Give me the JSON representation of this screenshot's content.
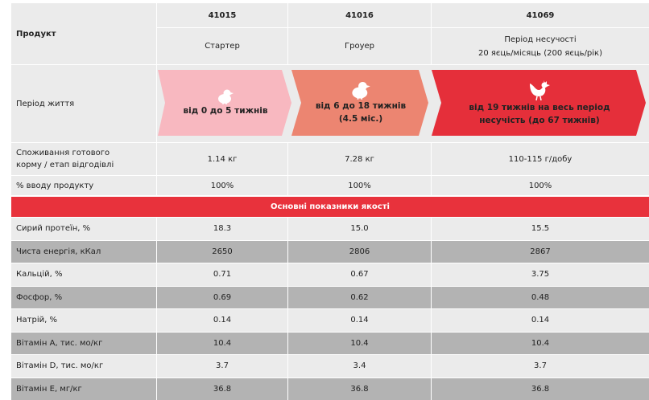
{
  "header": {
    "product_label": "Продукт",
    "codes": [
      "41015",
      "41016",
      "41069"
    ],
    "names": [
      "Стартер",
      "Гроуер",
      "Період несучості"
    ],
    "name_sub": "20 яєць/місяць (200 яєць/рік)"
  },
  "life_period": {
    "label": "Період життя",
    "stages": [
      {
        "line1": "від 0 до 5 тижнів",
        "line2": "",
        "color": "#f8b8c0",
        "icon": "chick-icon"
      },
      {
        "line1": "від 6 до 18 тижнів",
        "line2": "(4.5 міс.)",
        "color": "#ec8571",
        "icon": "chick-icon"
      },
      {
        "line1": "від 19 тижнів на весь період",
        "line2": "несучість (до 67 тижнів)",
        "color": "#e52f3a",
        "icon": "hen-icon"
      }
    ]
  },
  "consumption": {
    "label_line1": "Споживання готового",
    "label_line2": "корму / етап відгодівлі",
    "values": [
      "1.14 кг",
      "7.28 кг",
      "110-115 г/добу"
    ]
  },
  "input_pct": {
    "label": "% вводу продукту",
    "values": [
      "100%",
      "100%",
      "100%"
    ]
  },
  "quality_banner": "Основні показники якості",
  "quality_rows": [
    {
      "label": "Сирий протеїн, %",
      "values": [
        "18.3",
        "15.0",
        "15.5"
      ]
    },
    {
      "label": "Чиста енергія, кКал",
      "values": [
        "2650",
        "2806",
        "2867"
      ]
    },
    {
      "label": "Кальцій, %",
      "values": [
        "0.71",
        "0.67",
        "3.75"
      ]
    },
    {
      "label": "Фосфор, %",
      "values": [
        "0.69",
        "0.62",
        "0.48"
      ]
    },
    {
      "label": "Натрій, %",
      "values": [
        "0.14",
        "0.14",
        "0.14"
      ]
    },
    {
      "label": "Вітамін А, тис. мо/кг",
      "values": [
        "10.4",
        "10.4",
        "10.4"
      ]
    },
    {
      "label": "Вітамін D, тис. мо/кг",
      "values": [
        "3.7",
        "3.4",
        "3.7"
      ]
    },
    {
      "label": "Вітамін Е, мг/кг",
      "values": [
        "36.8",
        "36.8",
        "36.8"
      ]
    }
  ],
  "colors": {
    "accent_red": "#e8323c",
    "light_gray": "#ebebeb",
    "dark_gray": "#b3b3b3"
  }
}
